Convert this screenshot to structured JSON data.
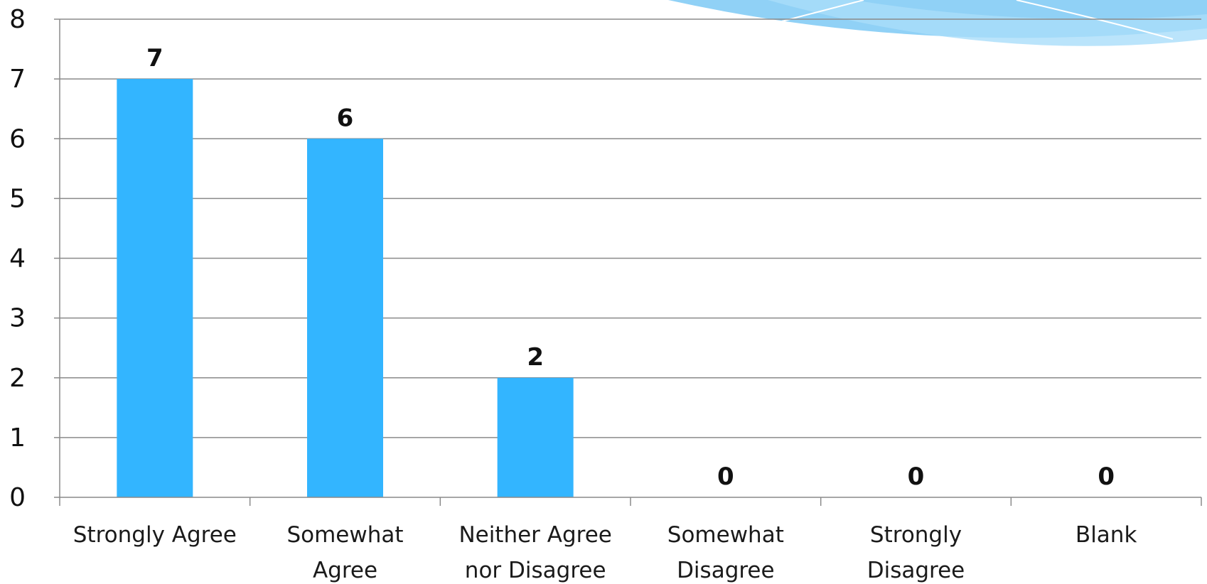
{
  "chart_data": {
    "type": "bar",
    "categories": [
      [
        "Strongly Agree"
      ],
      [
        "Somewhat",
        "Agree"
      ],
      [
        "Neither Agree",
        "nor Disagree"
      ],
      [
        "Somewhat",
        "Disagree"
      ],
      [
        "Strongly",
        "Disagree"
      ],
      [
        "Blank"
      ]
    ],
    "values": [
      7,
      6,
      2,
      0,
      0,
      0
    ],
    "value_labels": [
      "7",
      "6",
      "2",
      "0",
      "0",
      "0"
    ],
    "yticks": [
      "0",
      "1",
      "2",
      "3",
      "4",
      "5",
      "6",
      "7",
      "8"
    ],
    "ylim": [
      0,
      8
    ],
    "grid": true,
    "bar_color": "#33B5FF",
    "decoration_colors": [
      "#7CC9F5",
      "#A9DDFA",
      "#C9EAFB"
    ]
  }
}
